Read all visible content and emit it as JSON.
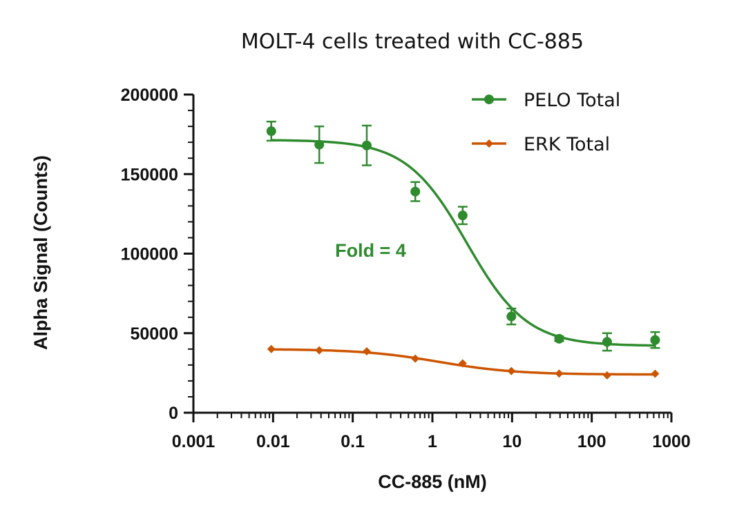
{
  "chart_data": {
    "type": "scatter",
    "title": "MOLT-4 cells treated with CC-885",
    "xlabel": "CC-885 (nM)",
    "ylabel": "Alpha Signal (Counts)",
    "x_scale": "log",
    "xlim": [
      0.001,
      1000
    ],
    "ylim": [
      0,
      200000
    ],
    "x_ticks": [
      0.001,
      0.01,
      0.1,
      1,
      10,
      100,
      1000
    ],
    "x_tick_labels": [
      "0.001",
      "0.01",
      "0.1",
      "1",
      "10",
      "100",
      "1000"
    ],
    "y_ticks": [
      0,
      50000,
      100000,
      150000,
      200000
    ],
    "y_tick_labels": [
      "0",
      "50000",
      "100000",
      "150000",
      "200000"
    ],
    "legend_position": "top-right",
    "grid": false,
    "series": [
      {
        "name": "PELO Total",
        "marker": "circle",
        "color": "#2e8b2e",
        "x": [
          0.0095,
          0.038,
          0.15,
          0.61,
          2.4,
          9.8,
          39,
          156,
          625
        ],
        "y": [
          177000,
          168500,
          168000,
          139000,
          124000,
          60500,
          46500,
          44500,
          45700
        ],
        "error": [
          6000,
          11500,
          12500,
          6000,
          5500,
          5000,
          1500,
          5500,
          5000
        ],
        "fit": {
          "bottom": 42000,
          "top": 171500,
          "ic50": 2.7,
          "hill": 1.15
        }
      },
      {
        "name": "ERK Total",
        "marker": "diamond",
        "color": "#cc5500",
        "x": [
          0.0095,
          0.038,
          0.15,
          0.61,
          2.4,
          9.8,
          39,
          156,
          625
        ],
        "y": [
          40000,
          39200,
          38600,
          34000,
          31000,
          26200,
          24600,
          23500,
          24500
        ],
        "error": [
          500,
          500,
          500,
          500,
          500,
          500,
          500,
          500,
          500
        ],
        "fit": {
          "bottom": 24000,
          "top": 40000,
          "ic50": 1.2,
          "hill": 0.9
        }
      }
    ],
    "annotations": [
      {
        "text": "Fold = 4",
        "x": 0.06,
        "y": 98000,
        "color": "#2e8b2e"
      }
    ]
  }
}
